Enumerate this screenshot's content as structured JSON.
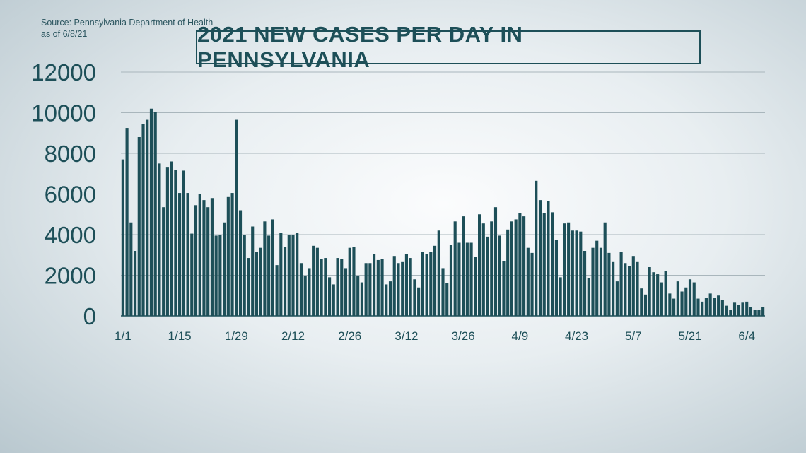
{
  "source_line1": "Source: Pennsylvania Department of Health",
  "source_line2": "as of 6/8/21",
  "chart_data": {
    "type": "bar",
    "title": "2021 NEW CASES PER DAY IN PENNSYLVANIA",
    "xlabel": "",
    "ylabel": "",
    "ylim": [
      0,
      12000
    ],
    "y_ticks": [
      0,
      2000,
      4000,
      6000,
      8000,
      10000,
      12000
    ],
    "x_tick_labels": [
      "1/1",
      "1/15",
      "1/29",
      "2/12",
      "2/26",
      "3/12",
      "3/26",
      "4/9",
      "4/23",
      "5/7",
      "5/21",
      "6/4"
    ],
    "x_tick_day_index": [
      0,
      14,
      28,
      42,
      56,
      70,
      84,
      98,
      112,
      126,
      140,
      154
    ],
    "grid": true,
    "bar_color": "#1d4f58",
    "values": [
      7700,
      9250,
      4600,
      3200,
      8800,
      9450,
      9650,
      10200,
      10050,
      7500,
      5350,
      7300,
      7600,
      7200,
      6050,
      7150,
      6050,
      4050,
      5450,
      6000,
      5700,
      5350,
      5800,
      3950,
      4000,
      4600,
      5850,
      6050,
      9650,
      5200,
      4000,
      2850,
      4400,
      3150,
      3350,
      4650,
      3950,
      4750,
      2500,
      4100,
      3400,
      4000,
      4000,
      4100,
      2600,
      1950,
      2350,
      3450,
      3350,
      2800,
      2850,
      1900,
      1550,
      2850,
      2800,
      2350,
      3350,
      3400,
      1950,
      1650,
      2600,
      2600,
      3050,
      2750,
      2800,
      1550,
      1700,
      2950,
      2600,
      2650,
      3050,
      2850,
      1800,
      1400,
      3150,
      3050,
      3150,
      3450,
      4200,
      2350,
      1600,
      3500,
      4650,
      3600,
      4900,
      3600,
      3600,
      2900,
      5000,
      4550,
      3900,
      4650,
      5350,
      3950,
      2700,
      4250,
      4650,
      4750,
      5050,
      4900,
      3350,
      3100,
      6650,
      5700,
      5050,
      5650,
      5100,
      3750,
      1900,
      4550,
      4600,
      4200,
      4200,
      4150,
      3200,
      1850,
      3350,
      3700,
      3350,
      4600,
      3100,
      2650,
      1700,
      3150,
      2600,
      2450,
      2950,
      2650,
      1350,
      1050,
      2400,
      2150,
      2050,
      1650,
      2200,
      1100,
      850,
      1700,
      1200,
      1400,
      1800,
      1650,
      850,
      700,
      900,
      1100,
      900,
      1000,
      800,
      500,
      300,
      650,
      550,
      650,
      700,
      450,
      300,
      300,
      450
    ]
  }
}
